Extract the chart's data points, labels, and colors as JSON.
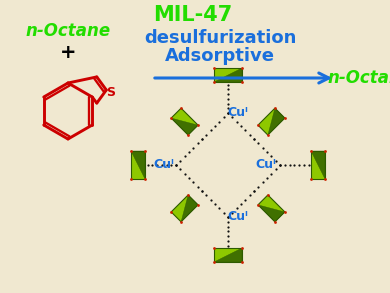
{
  "background_color": "#f0e8d0",
  "title_text": "MIL-47",
  "title_color": "#22dd00",
  "title_fontsize": 15,
  "arrow_color": "#1a6fdc",
  "arrow_text1": "Adsorptive",
  "arrow_text2": "desulfurization",
  "arrow_fontsize": 13,
  "product_text": "n-Octane",
  "product_color": "#22dd00",
  "product_fontsize": 12,
  "reactant_plus": "+",
  "reactant_label": "n-Octane",
  "reactant_color": "#22dd00",
  "reactant_fontsize": 12,
  "cu_label": "Cuᴵ",
  "cu_color": "#1a6fdc",
  "cu_fontsize": 9,
  "btp_color": "#cc0000",
  "s_label": "S",
  "mof_green_dark": "#2d5a00",
  "mof_green_light": "#8ec800",
  "mof_red": "#cc2200",
  "mof_black": "#111111",
  "mof_white": "#cccccc"
}
